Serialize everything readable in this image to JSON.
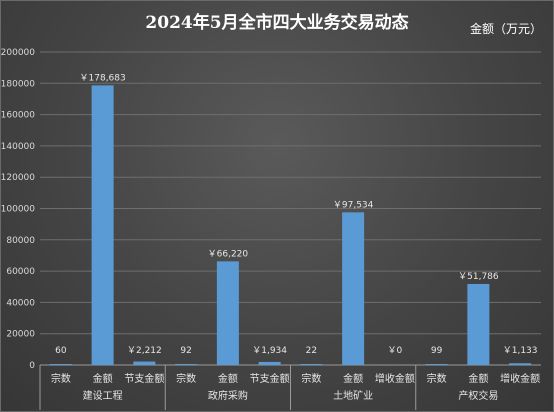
{
  "chart_data": {
    "type": "bar",
    "title": "2024年5月全市四大业务交易动态",
    "unit_label": "金额（万元）",
    "ylim": [
      0,
      200000
    ],
    "yticks": [
      "0",
      "20000",
      "40000",
      "60000",
      "80000",
      "100000",
      "120000",
      "140000",
      "160000",
      "180000",
      "200000"
    ],
    "groups": [
      {
        "name": "建设工程",
        "categories": [
          "宗数",
          "金额",
          "节支金额"
        ],
        "values": [
          60,
          178683,
          2212
        ],
        "labels": [
          "60",
          "￥178,683",
          "￥2,212"
        ]
      },
      {
        "name": "政府采购",
        "categories": [
          "宗数",
          "金额",
          "节支金额"
        ],
        "values": [
          92,
          66220,
          1934
        ],
        "labels": [
          "92",
          "￥66,220",
          "￥1,934"
        ]
      },
      {
        "name": "土地矿业",
        "categories": [
          "宗数",
          "金额",
          "增收金额"
        ],
        "values": [
          22,
          97534,
          0
        ],
        "labels": [
          "22",
          "￥97,534",
          "￥0"
        ]
      },
      {
        "name": "产权交易",
        "categories": [
          "宗数",
          "金额",
          "增收金额"
        ],
        "values": [
          99,
          51786,
          1133
        ],
        "labels": [
          "99",
          "￥51,786",
          "￥1,133"
        ]
      }
    ],
    "colors": {
      "bar": "#5b9bd5",
      "grid": "#6e6e6e",
      "axis": "#9a9a9a",
      "text": "#e6e6e6"
    },
    "grid": true,
    "legend": "none"
  }
}
